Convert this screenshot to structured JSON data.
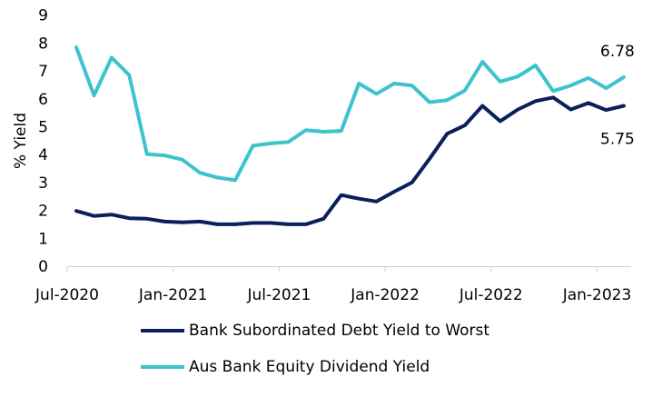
{
  "chart_data": {
    "type": "line",
    "ylabel": "% Yield",
    "ylim": [
      0,
      9
    ],
    "yticks": [
      "0",
      "1",
      "2",
      "3",
      "4",
      "5",
      "6",
      "7",
      "8",
      "9"
    ],
    "x_tick_labels": [
      "Jul-2020",
      "Jan-2021",
      "Jul-2021",
      "Jan-2022",
      "Jul-2022",
      "Jan-2023"
    ],
    "x": [
      "2020-07",
      "2020-08",
      "2020-09",
      "2020-10",
      "2020-11",
      "2020-12",
      "2021-01",
      "2021-02",
      "2021-03",
      "2021-04",
      "2021-05",
      "2021-06",
      "2021-07",
      "2021-08",
      "2021-09",
      "2021-10",
      "2021-11",
      "2021-12",
      "2022-01",
      "2022-02",
      "2022-03",
      "2022-04",
      "2022-05",
      "2022-06",
      "2022-07",
      "2022-08",
      "2022-09",
      "2022-10",
      "2022-11",
      "2022-12",
      "2023-01",
      "2023-02"
    ],
    "series": [
      {
        "name": "Bank Subordinated Debt Yield to Worst",
        "color": "#0a1f5c",
        "values": [
          1.98,
          1.8,
          1.85,
          1.72,
          1.7,
          1.6,
          1.57,
          1.6,
          1.5,
          1.5,
          1.55,
          1.55,
          1.5,
          1.5,
          1.7,
          2.55,
          2.42,
          2.32,
          2.67,
          3.0,
          3.85,
          4.75,
          5.05,
          5.75,
          5.2,
          5.62,
          5.92,
          6.05,
          5.62,
          5.85,
          5.6,
          5.75
        ],
        "end_label": "5.75"
      },
      {
        "name": "Aus Bank Equity Dividend Yield",
        "color": "#3cc3ce",
        "values": [
          7.85,
          6.12,
          7.48,
          6.85,
          4.02,
          3.97,
          3.82,
          3.35,
          3.18,
          3.08,
          4.32,
          4.4,
          4.45,
          4.88,
          4.82,
          4.85,
          6.55,
          6.18,
          6.55,
          6.48,
          5.88,
          5.95,
          6.3,
          7.33,
          6.62,
          6.8,
          7.2,
          6.28,
          6.48,
          6.75,
          6.38,
          6.78
        ],
        "end_label": "6.78"
      }
    ],
    "grid": false,
    "legend_position": "bottom"
  }
}
